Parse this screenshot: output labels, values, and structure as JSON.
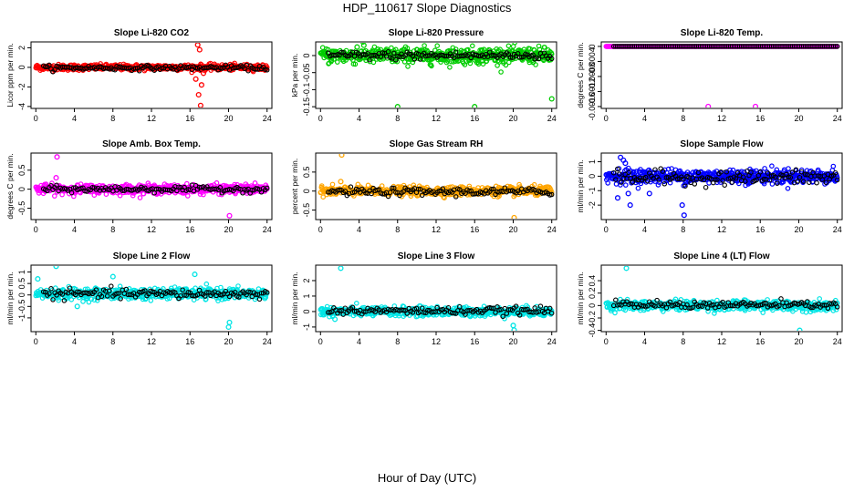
{
  "figure": {
    "title": "HDP_110617  Slope Diagnostics",
    "xlabel": "Hour of Day (UTC)"
  },
  "chart_data": [
    {
      "type": "scatter",
      "title": "Slope Li-820 CO2",
      "ylabel": "Licor ppm per min.",
      "color": "#ff0000",
      "xlim": [
        -0.5,
        24.5
      ],
      "ylim": [
        -4.2,
        2.6
      ],
      "yticks": [
        -4,
        -2,
        0,
        2
      ],
      "xticks": [
        0,
        4,
        8,
        12,
        16,
        20,
        24
      ],
      "center": 0.0,
      "spread": 0.15,
      "black_center": -0.05,
      "black_spread": 0.12,
      "outliers": [
        [
          16.8,
          2.3
        ],
        [
          17.0,
          1.8
        ],
        [
          16.6,
          -1.2
        ],
        [
          17.2,
          -1.8
        ],
        [
          16.9,
          -2.8
        ],
        [
          17.1,
          -3.9
        ],
        [
          17.4,
          -0.6
        ]
      ]
    },
    {
      "type": "scatter",
      "title": "Slope Li-820 Pressure",
      "ylabel": "kPa per min.",
      "color": "#00cc00",
      "xlim": [
        -0.5,
        24.5
      ],
      "ylim": [
        -0.155,
        0.04
      ],
      "yticks": [
        -0.15,
        -0.1,
        -0.05,
        0
      ],
      "xticks": [
        0,
        4,
        8,
        12,
        16,
        20,
        24
      ],
      "center": 0.0,
      "spread": 0.012,
      "black_center": 0.0,
      "black_spread": 0.006,
      "outliers": [
        [
          8,
          -0.15
        ],
        [
          16,
          -0.15
        ],
        [
          24,
          -0.127
        ],
        [
          4.5,
          0.03
        ],
        [
          3.8,
          0.025
        ]
      ]
    },
    {
      "type": "scatter",
      "title": "Slope Li-820 Temp.",
      "ylabel": "degrees C per min.",
      "color": "#ff00ff",
      "xlim": [
        -0.5,
        24.5
      ],
      "ylim": [
        -0.00165,
        0.00012
      ],
      "yticks": [
        -0.0016,
        -0.0012,
        -0.0008,
        -0.0004,
        0
      ],
      "xticks": [
        0,
        4,
        8,
        12,
        16,
        20,
        24
      ],
      "center": 0.0,
      "spread": 0.0,
      "black_center": 0.0,
      "black_spread": 0.0,
      "outliers": [
        [
          10.6,
          -0.0016
        ],
        [
          15.5,
          -0.0016
        ]
      ]
    },
    {
      "type": "scatter",
      "title": "Slope Amb. Box Temp.",
      "ylabel": "degrees C per min.",
      "color": "#ff00ff",
      "xlim": [
        -0.5,
        24.5
      ],
      "ylim": [
        -0.8,
        0.95
      ],
      "yticks": [
        -0.5,
        0,
        0.5
      ],
      "xticks": [
        0,
        4,
        8,
        12,
        16,
        20,
        24
      ],
      "center": 0.0,
      "spread": 0.06,
      "black_center": 0.0,
      "black_spread": 0.04,
      "outliers": [
        [
          2.2,
          0.85
        ],
        [
          2.1,
          0.3
        ],
        [
          20.1,
          -0.7
        ]
      ]
    },
    {
      "type": "scatter",
      "title": "Slope Gas Stream RH",
      "ylabel": "percent per min.",
      "color": "#ffa500",
      "xlim": [
        -0.5,
        24.5
      ],
      "ylim": [
        -0.75,
        1.0
      ],
      "yticks": [
        -0.5,
        0,
        0.5
      ],
      "xticks": [
        0,
        4,
        8,
        12,
        16,
        20,
        24
      ],
      "center": 0.0,
      "spread": 0.06,
      "black_center": -0.02,
      "black_spread": 0.05,
      "outliers": [
        [
          2.2,
          0.95
        ],
        [
          2.1,
          0.25
        ],
        [
          20.1,
          -0.7
        ]
      ]
    },
    {
      "type": "scatter",
      "title": "Slope Sample Flow",
      "ylabel": "ml/min per min.",
      "color": "#0000ff",
      "xlim": [
        -0.5,
        24.5
      ],
      "ylim": [
        -3.0,
        1.6
      ],
      "yticks": [
        -2,
        -1,
        0,
        1
      ],
      "xticks": [
        0,
        4,
        8,
        12,
        16,
        20,
        24
      ],
      "center": 0.0,
      "spread": 0.25,
      "black_center": -0.1,
      "black_spread": 0.25,
      "outliers": [
        [
          1.5,
          1.3
        ],
        [
          1.8,
          1.1
        ],
        [
          2.0,
          0.9
        ],
        [
          1.2,
          -1.5
        ],
        [
          2.5,
          -2.0
        ],
        [
          7.9,
          -2.0
        ],
        [
          8.1,
          -2.7
        ],
        [
          2.3,
          -1.2
        ],
        [
          4.5,
          -1.2
        ]
      ]
    },
    {
      "type": "scatter",
      "title": "Slope Line 2 Flow",
      "ylabel": "ml/min per min.",
      "color": "#00e5e5",
      "xlim": [
        -0.5,
        24.5
      ],
      "ylim": [
        -1.6,
        1.3
      ],
      "yticks": [
        -1.0,
        -0.5,
        0.0,
        0.5,
        1.0
      ],
      "xticks": [
        0,
        4,
        8,
        12,
        16,
        20,
        24
      ],
      "center": 0.05,
      "spread": 0.12,
      "black_center": 0.05,
      "black_spread": 0.1,
      "outliers": [
        [
          2.1,
          1.25
        ],
        [
          0.2,
          0.7
        ],
        [
          8.0,
          0.8
        ],
        [
          16.5,
          0.9
        ],
        [
          4.3,
          -0.5
        ],
        [
          20.1,
          -1.2
        ],
        [
          20.0,
          -1.4
        ]
      ]
    },
    {
      "type": "scatter",
      "title": "Slope Line 3 Flow",
      "ylabel": "ml/min per min.",
      "color": "#00e5e5",
      "xlim": [
        -0.5,
        24.5
      ],
      "ylim": [
        -1.3,
        3.0
      ],
      "yticks": [
        -1,
        0,
        1,
        2
      ],
      "xticks": [
        0,
        4,
        8,
        12,
        16,
        20,
        24
      ],
      "center": 0.0,
      "spread": 0.15,
      "black_center": 0.05,
      "black_spread": 0.12,
      "outliers": [
        [
          2.1,
          2.8
        ],
        [
          20.1,
          -1.2
        ],
        [
          20.0,
          -0.9
        ],
        [
          1.5,
          -0.5
        ]
      ]
    },
    {
      "type": "scatter",
      "title": "Slope Line 4 (LT) Flow",
      "ylabel": "ml/min per min.",
      "color": "#00e5e5",
      "xlim": [
        -0.5,
        24.5
      ],
      "ylim": [
        -0.42,
        0.65
      ],
      "yticks": [
        -0.4,
        -0.2,
        0,
        0.2,
        0.4
      ],
      "xticks": [
        0,
        4,
        8,
        12,
        16,
        20,
        24
      ],
      "center": 0.0,
      "spread": 0.04,
      "black_center": 0.01,
      "black_spread": 0.03,
      "outliers": [
        [
          2.1,
          0.6
        ],
        [
          20.1,
          -0.4
        ]
      ]
    }
  ]
}
